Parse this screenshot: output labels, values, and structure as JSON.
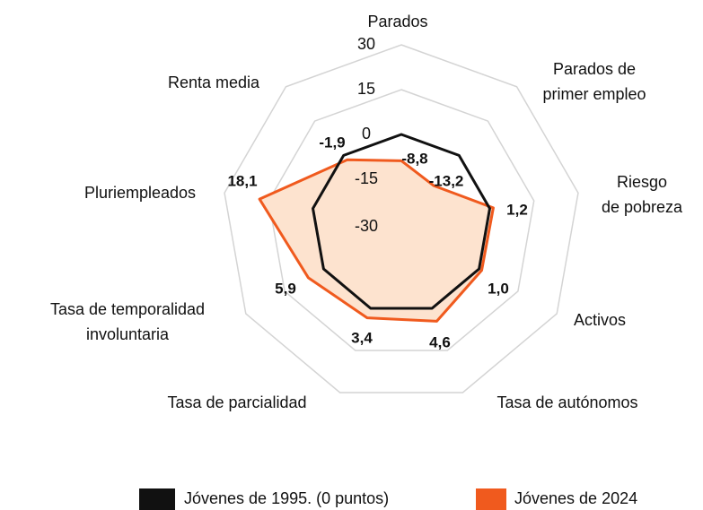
{
  "chart_data": {
    "type": "radar",
    "categories": [
      "Parados",
      "Parados de\nprimer empleo",
      "Riesgo\nde pobreza",
      "Activos",
      "Tasa de autónomos",
      "Tasa de parcialidad",
      "Tasa de temporalidad\ninvoluntaria",
      "Pluriempleados",
      "Renta media"
    ],
    "ylim": [
      -30,
      30
    ],
    "yticks": [
      30,
      15,
      0,
      -15,
      -30
    ],
    "grid": true,
    "series": [
      {
        "name": "Jóvenes de 1995. (0 puntos)",
        "color": "#111111",
        "values": [
          0,
          0,
          0,
          0,
          0,
          0,
          0,
          0,
          0
        ]
      },
      {
        "name": "Jóvenes de 2024",
        "color": "#f05a1e",
        "fill": "#fde3cf",
        "values": [
          -8.8,
          -13.2,
          1.2,
          1.0,
          4.6,
          3.4,
          5.9,
          18.1,
          -1.9
        ],
        "value_labels": [
          "-8,8",
          "-13,2",
          "1,2",
          "1,0",
          "4,6",
          "3,4",
          "5,9",
          "18,1",
          "-1,9"
        ]
      }
    ],
    "legend": "bottom"
  }
}
